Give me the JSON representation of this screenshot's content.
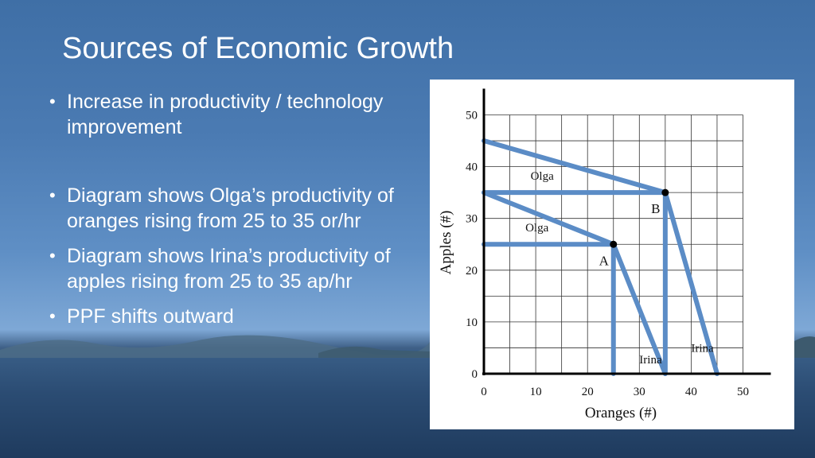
{
  "slide": {
    "title": "Sources of Economic Growth",
    "bullets": [
      "Increase in productivity / technology improvement",
      "Diagram shows Olga’s productivity of oranges rising from 25 to 35 or/hr",
      "Diagram shows Irina’s productivity of apples rising from 25 to 35 ap/hr",
      "PPF shifts outward"
    ]
  },
  "chart_data": {
    "type": "line",
    "xlabel": "Oranges (#)",
    "ylabel": "Apples (#)",
    "xlim": [
      0,
      50
    ],
    "ylim": [
      0,
      50
    ],
    "x_ticks": [
      0,
      10,
      20,
      30,
      40,
      50
    ],
    "y_ticks": [
      0,
      10,
      20,
      30,
      40,
      50
    ],
    "grid": true,
    "line_color": "#5b8cc6",
    "series": [
      {
        "values": [
          [
            0,
            25
          ],
          [
            25,
            25
          ],
          [
            25,
            0
          ]
        ]
      },
      {
        "values": [
          [
            0,
            35
          ],
          [
            25,
            25
          ],
          [
            35,
            0
          ]
        ]
      },
      {
        "values": [
          [
            0,
            35
          ],
          [
            35,
            35
          ],
          [
            35,
            0
          ]
        ]
      },
      {
        "values": [
          [
            0,
            45
          ],
          [
            35,
            35
          ],
          [
            45,
            0
          ]
        ]
      }
    ],
    "points": [
      {
        "label": "A",
        "x": 25,
        "y": 25
      },
      {
        "label": "B",
        "x": 35,
        "y": 35
      }
    ],
    "annotations": [
      {
        "text": "Olga",
        "x": 9,
        "y": 37.5
      },
      {
        "text": "Olga",
        "x": 8,
        "y": 27.5
      },
      {
        "text": "Irina",
        "x": 30,
        "y": 2
      },
      {
        "text": "Irina",
        "x": 40,
        "y": 4.2
      }
    ]
  }
}
